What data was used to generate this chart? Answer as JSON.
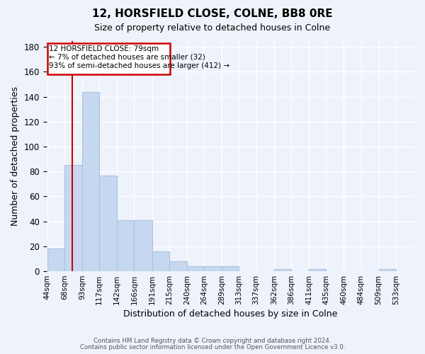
{
  "title": "12, HORSFIELD CLOSE, COLNE, BB8 0RE",
  "subtitle": "Size of property relative to detached houses in Colne",
  "xlabel": "Distribution of detached houses by size in Colne",
  "ylabel": "Number of detached properties",
  "bar_values": [
    18,
    85,
    144,
    77,
    41,
    41,
    16,
    8,
    4,
    4,
    4,
    0,
    0,
    2,
    0,
    2,
    0,
    0,
    0,
    2
  ],
  "bar_labels": [
    "44sqm",
    "68sqm",
    "93sqm",
    "117sqm",
    "142sqm",
    "166sqm",
    "191sqm",
    "215sqm",
    "240sqm",
    "264sqm",
    "289sqm",
    "313sqm",
    "337sqm",
    "362sqm",
    "386sqm",
    "411sqm",
    "435sqm",
    "460sqm",
    "484sqm",
    "509sqm",
    "533sqm"
  ],
  "bar_color": "#c5d8f0",
  "bar_edgecolor": "#a8c4e0",
  "ylim": [
    0,
    185
  ],
  "yticks": [
    0,
    20,
    40,
    60,
    80,
    100,
    120,
    140,
    160,
    180
  ],
  "vline_x": 79,
  "vline_color": "#cc0000",
  "annotation_title": "12 HORSFIELD CLOSE: 79sqm",
  "annotation_line1": "← 7% of detached houses are smaller (32)",
  "annotation_line2": "93% of semi-detached houses are larger (412) →",
  "annotation_box_color": "#cc0000",
  "footer1": "Contains HM Land Registry data © Crown copyright and database right 2024.",
  "footer2": "Contains public sector information licensed under the Open Government Licence v3.0.",
  "background_color": "#eef2fb",
  "grid_color": "#ffffff",
  "bin_edges": [
    44,
    68,
    93,
    117,
    142,
    166,
    191,
    215,
    240,
    264,
    289,
    313,
    337,
    362,
    386,
    411,
    435,
    460,
    484,
    509,
    533
  ]
}
